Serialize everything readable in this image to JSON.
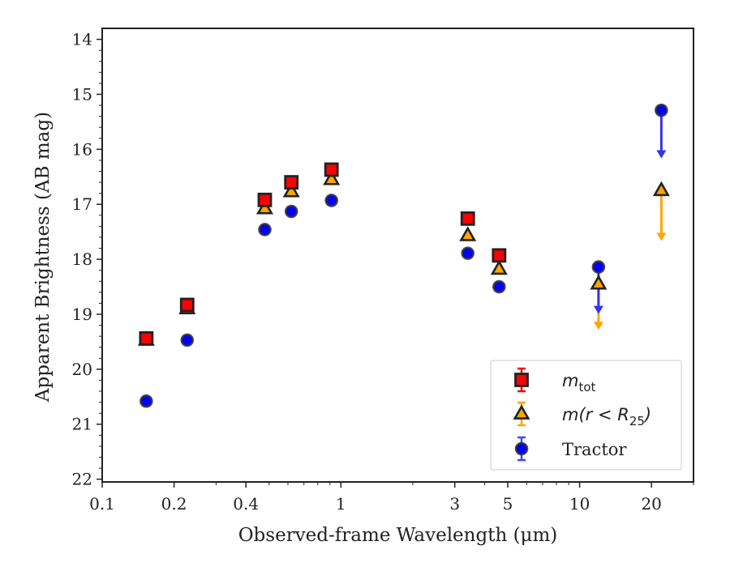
{
  "chart_data": {
    "type": "scatter",
    "title": "",
    "xlabel": "Observed-frame Wavelength (μm)",
    "ylabel": "Apparent Brightness (AB mag)",
    "x_scale": "log",
    "xlim": [
      0.1,
      30
    ],
    "ylim": [
      22.05,
      13.8
    ],
    "y_inverted": true,
    "x_ticks": [
      0.1,
      0.2,
      0.4,
      1,
      3,
      5,
      10,
      20
    ],
    "x_tick_labels": [
      "0.1",
      "0.2",
      "0.4",
      "1",
      "3",
      "5",
      "10",
      "20"
    ],
    "y_ticks": [
      14,
      15,
      16,
      17,
      18,
      19,
      20,
      21,
      22
    ],
    "y_tick_labels": [
      "14",
      "15",
      "16",
      "17",
      "18",
      "19",
      "20",
      "21",
      "22"
    ],
    "legend_position": "lower-right",
    "grid": false,
    "series": [
      {
        "name": "m_tot",
        "legend_label": "m",
        "legend_subscript": "tot",
        "marker": "square",
        "color": "#ff0000",
        "edge_color": "#222222",
        "points": [
          {
            "x": 0.153,
            "y": 19.44
          },
          {
            "x": 0.227,
            "y": 18.83
          },
          {
            "x": 0.48,
            "y": 16.92
          },
          {
            "x": 0.62,
            "y": 16.6
          },
          {
            "x": 0.913,
            "y": 16.37
          },
          {
            "x": 3.4,
            "y": 17.26
          },
          {
            "x": 4.6,
            "y": 17.93
          }
        ]
      },
      {
        "name": "m(r < R_25)",
        "legend_label": "m(r < R",
        "legend_subscript": "25",
        "legend_suffix": ")",
        "marker": "triangle",
        "color": "#ffa500",
        "edge_color": "#222222",
        "points": [
          {
            "x": 0.153,
            "y": 19.47
          },
          {
            "x": 0.227,
            "y": 18.9
          },
          {
            "x": 0.48,
            "y": 17.08
          },
          {
            "x": 0.62,
            "y": 16.77
          },
          {
            "x": 0.913,
            "y": 16.55
          },
          {
            "x": 3.4,
            "y": 17.57
          },
          {
            "x": 4.6,
            "y": 18.18
          },
          {
            "x": 12,
            "y": 18.45,
            "upper_limit": true,
            "arrow_to": 19.27
          },
          {
            "x": 22,
            "y": 16.75,
            "upper_limit": true,
            "arrow_to": 17.65
          }
        ]
      },
      {
        "name": "Tractor",
        "legend_label": "Tractor",
        "marker": "circle",
        "color": "#0000ff",
        "edge_color": "#333333",
        "points": [
          {
            "x": 0.153,
            "y": 20.58
          },
          {
            "x": 0.227,
            "y": 19.47
          },
          {
            "x": 0.48,
            "y": 17.46
          },
          {
            "x": 0.62,
            "y": 17.13
          },
          {
            "x": 0.913,
            "y": 16.93
          },
          {
            "x": 3.4,
            "y": 17.89
          },
          {
            "x": 4.6,
            "y": 18.5
          },
          {
            "x": 12,
            "y": 18.14,
            "upper_limit": true,
            "arrow_to": 18.98
          },
          {
            "x": 22,
            "y": 15.29,
            "upper_limit": true,
            "arrow_to": 16.15
          }
        ]
      }
    ]
  }
}
